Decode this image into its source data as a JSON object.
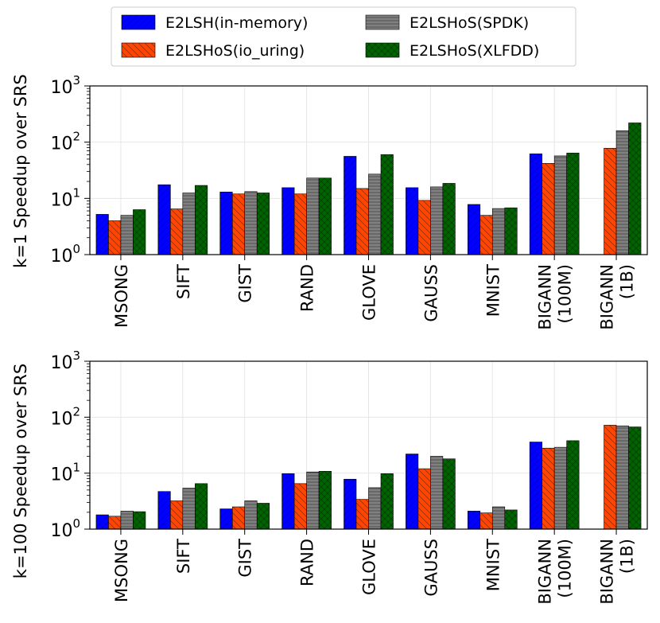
{
  "legend": {
    "location": "top-center",
    "items": [
      {
        "label": "E2LSH(in-memory)",
        "color": "#0000ff",
        "hatch": "diagonal"
      },
      {
        "label": "E2LSHoS(io_uring)",
        "color": "#ff4500",
        "hatch": "back-diagonal"
      },
      {
        "label": "E2LSHoS(SPDK)",
        "color": "#808080",
        "hatch": "horizontal"
      },
      {
        "label": "E2LSHoS(XLFDD)",
        "color": "#006400",
        "hatch": "cross"
      }
    ]
  },
  "chart_data": [
    {
      "type": "bar",
      "yscale": "log",
      "ylabel": "k=1 Speedup over SRS",
      "ylim": [
        1,
        1000
      ],
      "yticks": [
        {
          "value": 1,
          "base": "10",
          "exp": "0"
        },
        {
          "value": 10,
          "base": "10",
          "exp": "1"
        },
        {
          "value": 100,
          "base": "10",
          "exp": "2"
        },
        {
          "value": 1000,
          "base": "10",
          "exp": "3"
        }
      ],
      "grid": true,
      "categories": [
        [
          "MSONG"
        ],
        [
          "SIFT"
        ],
        [
          "GIST"
        ],
        [
          "RAND"
        ],
        [
          "GLOVE"
        ],
        [
          "GAUSS"
        ],
        [
          "MNIST"
        ],
        [
          "BIGANN",
          "(100M)"
        ],
        [
          "BIGANN",
          "(1B)"
        ]
      ],
      "series": [
        {
          "name": "E2LSH(in-memory)",
          "values": [
            5.2,
            17.5,
            13.0,
            15.5,
            56,
            15.5,
            7.8,
            62,
            null
          ]
        },
        {
          "name": "E2LSHoS(io_uring)",
          "values": [
            4.0,
            6.5,
            12.0,
            12.0,
            15.0,
            9.2,
            5.0,
            42,
            78
          ]
        },
        {
          "name": "E2LSHoS(SPDK)",
          "values": [
            5.0,
            12.5,
            13.2,
            23,
            27,
            16,
            6.6,
            57,
            160
          ]
        },
        {
          "name": "E2LSHoS(XLFDD)",
          "values": [
            6.3,
            17,
            12.5,
            23,
            60,
            18.5,
            6.8,
            64,
            220
          ]
        }
      ]
    },
    {
      "type": "bar",
      "yscale": "log",
      "ylabel": "k=100 Speedup over SRS",
      "ylim": [
        1,
        1000
      ],
      "yticks": [
        {
          "value": 1,
          "base": "10",
          "exp": "0"
        },
        {
          "value": 10,
          "base": "10",
          "exp": "1"
        },
        {
          "value": 100,
          "base": "10",
          "exp": "2"
        },
        {
          "value": 1000,
          "base": "10",
          "exp": "3"
        }
      ],
      "grid": true,
      "categories": [
        [
          "MSONG"
        ],
        [
          "SIFT"
        ],
        [
          "GIST"
        ],
        [
          "RAND"
        ],
        [
          "GLOVE"
        ],
        [
          "GAUSS"
        ],
        [
          "MNIST"
        ],
        [
          "BIGANN",
          "(100M)"
        ],
        [
          "BIGANN",
          "(1B)"
        ]
      ],
      "series": [
        {
          "name": "E2LSH(in-memory)",
          "values": [
            1.8,
            4.7,
            2.3,
            9.8,
            7.8,
            22,
            2.1,
            36,
            null
          ]
        },
        {
          "name": "E2LSHoS(io_uring)",
          "values": [
            1.7,
            3.2,
            2.5,
            6.5,
            3.4,
            12.0,
            1.95,
            28,
            72
          ]
        },
        {
          "name": "E2LSHoS(SPDK)",
          "values": [
            2.1,
            5.4,
            3.2,
            10.5,
            5.5,
            20,
            2.5,
            29,
            70
          ]
        },
        {
          "name": "E2LSHoS(XLFDD)",
          "values": [
            2.05,
            6.5,
            2.9,
            10.8,
            9.8,
            18,
            2.2,
            38,
            67
          ]
        }
      ]
    }
  ]
}
